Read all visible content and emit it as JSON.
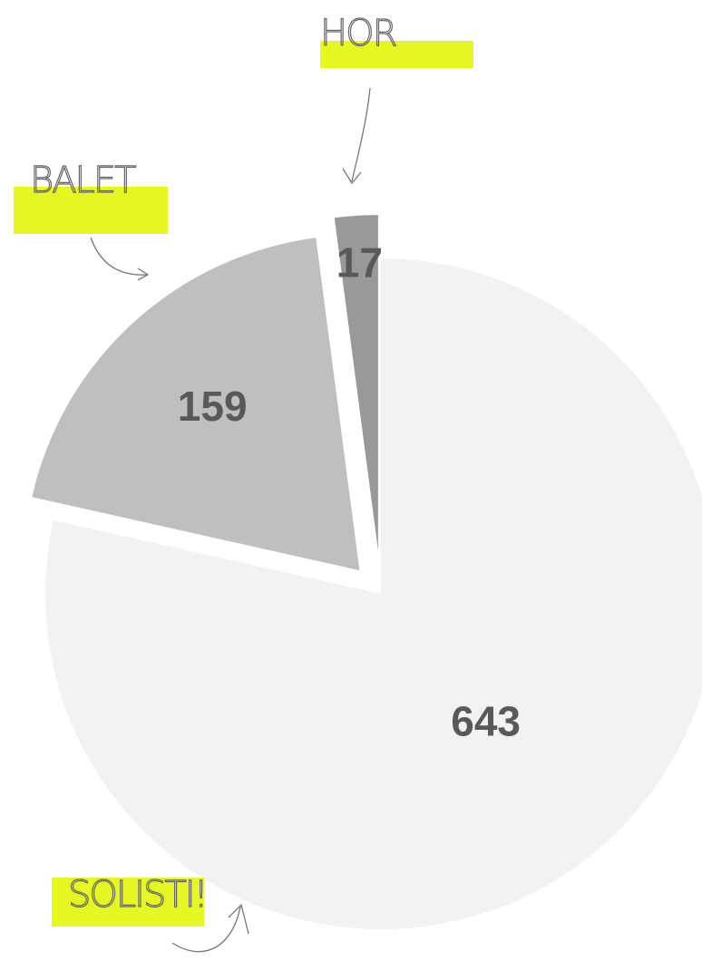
{
  "chart_data": {
    "type": "pie",
    "categories": [
      "SOLISTI!",
      "BALET",
      "HOR"
    ],
    "values": [
      643,
      159,
      17
    ],
    "colors": [
      "#f2f2f2",
      "#bfbfbf",
      "#999999"
    ]
  }
}
